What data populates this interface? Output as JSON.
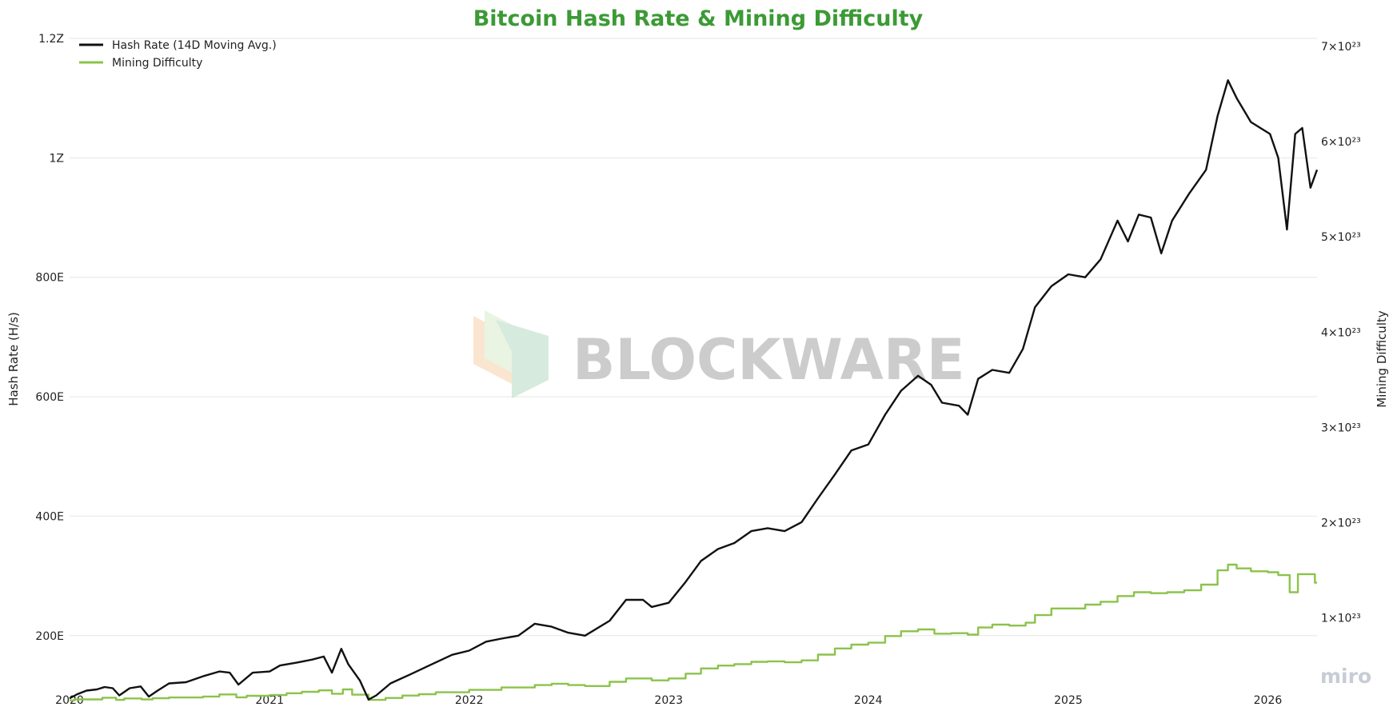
{
  "chart_data": {
    "type": "line",
    "title": "Bitcoin Hash Rate & Mining Difficulty",
    "title_color": "#3c9a35",
    "ylabel_left": "Hash Rate (H/s)",
    "ylabel_right": "Mining Difficulty",
    "grid": "horizontal",
    "legend_position": "top-left",
    "x_range": [
      "2020-01-01",
      "2026-04-01"
    ],
    "x_ticks": [
      "2020",
      "2021",
      "2022",
      "2023",
      "2024",
      "2025",
      "2026"
    ],
    "y_left": {
      "unit": "H/s",
      "range": [
        1.1e+20,
        1.2e+21
      ],
      "ticks": [
        {
          "value": 2e+20,
          "label": "200E"
        },
        {
          "value": 4e+20,
          "label": "400E"
        },
        {
          "value": 6e+20,
          "label": "600E"
        },
        {
          "value": 8e+20,
          "label": "800E"
        },
        {
          "value": 1e+21,
          "label": "1Z"
        },
        {
          "value": 1.2e+21,
          "label": "1.2Z"
        }
      ]
    },
    "y_right": {
      "range": [
        2.5e+22,
        7e+23
      ],
      "ticks": [
        {
          "value": 1e+23,
          "label": "1×10²³"
        },
        {
          "value": 2e+23,
          "label": "2×10²³"
        },
        {
          "value": 3e+23,
          "label": "3×10²³"
        },
        {
          "value": 4e+23,
          "label": "4×10²³"
        },
        {
          "value": 5e+23,
          "label": "5×10²³"
        },
        {
          "value": 6e+23,
          "label": "6×10²³"
        },
        {
          "value": 7e+23,
          "label": "7×10²³"
        }
      ]
    },
    "series": [
      {
        "name": "Hash Rate (14D Moving Avg.)",
        "color": "#111111",
        "axis": "left",
        "points": [
          [
            "2020-01-01",
            9.5e+19
          ],
          [
            "2020-01-15",
            1.02e+20
          ],
          [
            "2020-02-01",
            1.08e+20
          ],
          [
            "2020-02-20",
            1.1e+20
          ],
          [
            "2020-03-05",
            1.14e+20
          ],
          [
            "2020-03-20",
            1.12e+20
          ],
          [
            "2020-04-01",
            1e+20
          ],
          [
            "2020-04-20",
            1.12e+20
          ],
          [
            "2020-05-10",
            1.15e+20
          ],
          [
            "2020-05-25",
            9.8e+19
          ],
          [
            "2020-06-10",
            1.08e+20
          ],
          [
            "2020-07-01",
            1.2e+20
          ],
          [
            "2020-08-01",
            1.22e+20
          ],
          [
            "2020-09-01",
            1.32e+20
          ],
          [
            "2020-10-01",
            1.4e+20
          ],
          [
            "2020-10-20",
            1.38e+20
          ],
          [
            "2020-11-05",
            1.18e+20
          ],
          [
            "2020-12-01",
            1.38e+20
          ],
          [
            "2021-01-01",
            1.4e+20
          ],
          [
            "2021-01-20",
            1.5e+20
          ],
          [
            "2021-02-20",
            1.55e+20
          ],
          [
            "2021-03-20",
            1.6e+20
          ],
          [
            "2021-04-10",
            1.65e+20
          ],
          [
            "2021-04-25",
            1.38e+20
          ],
          [
            "2021-05-12",
            1.78e+20
          ],
          [
            "2021-05-25",
            1.52e+20
          ],
          [
            "2021-06-15",
            1.25e+20
          ],
          [
            "2021-07-01",
            9.3e+19
          ],
          [
            "2021-07-15",
            1e+20
          ],
          [
            "2021-08-10",
            1.2e+20
          ],
          [
            "2021-09-15",
            1.35e+20
          ],
          [
            "2021-10-20",
            1.5e+20
          ],
          [
            "2021-12-01",
            1.68e+20
          ],
          [
            "2022-01-01",
            1.75e+20
          ],
          [
            "2022-02-01",
            1.9e+20
          ],
          [
            "2022-03-01",
            1.95e+20
          ],
          [
            "2022-04-01",
            2e+20
          ],
          [
            "2022-05-01",
            2.2e+20
          ],
          [
            "2022-06-01",
            2.15e+20
          ],
          [
            "2022-07-01",
            2.05e+20
          ],
          [
            "2022-08-01",
            2e+20
          ],
          [
            "2022-09-15",
            2.25e+20
          ],
          [
            "2022-10-15",
            2.6e+20
          ],
          [
            "2022-11-15",
            2.6e+20
          ],
          [
            "2022-12-01",
            2.48e+20
          ],
          [
            "2023-01-01",
            2.55e+20
          ],
          [
            "2023-02-01",
            2.9e+20
          ],
          [
            "2023-03-01",
            3.25e+20
          ],
          [
            "2023-04-01",
            3.45e+20
          ],
          [
            "2023-05-01",
            3.55e+20
          ],
          [
            "2023-06-01",
            3.75e+20
          ],
          [
            "2023-07-01",
            3.8e+20
          ],
          [
            "2023-08-01",
            3.75e+20
          ],
          [
            "2023-09-01",
            3.9e+20
          ],
          [
            "2023-10-01",
            4.3e+20
          ],
          [
            "2023-11-01",
            4.7e+20
          ],
          [
            "2023-12-01",
            5.1e+20
          ],
          [
            "2024-01-01",
            5.2e+20
          ],
          [
            "2024-02-01",
            5.7e+20
          ],
          [
            "2024-03-01",
            6.1e+20
          ],
          [
            "2024-04-01",
            6.35e+20
          ],
          [
            "2024-04-25",
            6.2e+20
          ],
          [
            "2024-05-15",
            5.9e+20
          ],
          [
            "2024-06-15",
            5.85e+20
          ],
          [
            "2024-07-01",
            5.7e+20
          ],
          [
            "2024-07-20",
            6.3e+20
          ],
          [
            "2024-08-15",
            6.45e+20
          ],
          [
            "2024-09-15",
            6.4e+20
          ],
          [
            "2024-10-10",
            6.8e+20
          ],
          [
            "2024-11-01",
            7.5e+20
          ],
          [
            "2024-12-01",
            7.85e+20
          ],
          [
            "2025-01-01",
            8.05e+20
          ],
          [
            "2025-02-01",
            8e+20
          ],
          [
            "2025-03-01",
            8.3e+20
          ],
          [
            "2025-04-01",
            8.95e+20
          ],
          [
            "2025-04-20",
            8.6e+20
          ],
          [
            "2025-05-10",
            9.05e+20
          ],
          [
            "2025-06-01",
            9e+20
          ],
          [
            "2025-06-20",
            8.4e+20
          ],
          [
            "2025-07-10",
            8.95e+20
          ],
          [
            "2025-08-10",
            9.4e+20
          ],
          [
            "2025-09-10",
            9.8e+20
          ],
          [
            "2025-10-01",
            1.07e+21
          ],
          [
            "2025-10-20",
            1.13e+21
          ],
          [
            "2025-11-05",
            1.1e+21
          ],
          [
            "2025-12-01",
            1.06e+21
          ],
          [
            "2026-01-05",
            1.04e+21
          ],
          [
            "2026-01-20",
            1e+21
          ],
          [
            "2026-02-05",
            8.8e+20
          ],
          [
            "2026-02-20",
            1.04e+21
          ],
          [
            "2026-03-05",
            1.05e+21
          ],
          [
            "2026-03-20",
            9.5e+20
          ],
          [
            "2026-04-01",
            9.8e+20
          ]
        ]
      },
      {
        "name": "Mining Difficulty",
        "color": "#8bc34a",
        "axis": "right",
        "points": [
          [
            "2020-01-01",
            1.35e+22
          ],
          [
            "2020-01-10",
            1.45e+22
          ],
          [
            "2020-03-01",
            1.63e+22
          ],
          [
            "2020-03-26",
            1.4e+22
          ],
          [
            "2020-04-10",
            1.55e+22
          ],
          [
            "2020-05-12",
            1.45e+22
          ],
          [
            "2020-06-01",
            1.58e+22
          ],
          [
            "2020-07-01",
            1.65e+22
          ],
          [
            "2020-09-01",
            1.75e+22
          ],
          [
            "2020-10-01",
            1.97e+22
          ],
          [
            "2020-11-01",
            1.67e+22
          ],
          [
            "2020-11-20",
            1.83e+22
          ],
          [
            "2021-01-01",
            1.9e+22
          ],
          [
            "2021-02-01",
            2.1e+22
          ],
          [
            "2021-03-01",
            2.25e+22
          ],
          [
            "2021-04-01",
            2.4e+22
          ],
          [
            "2021-04-25",
            2.05e+22
          ],
          [
            "2021-05-15",
            2.5e+22
          ],
          [
            "2021-06-01",
            1.95e+22
          ],
          [
            "2021-07-01",
            1.4e+22
          ],
          [
            "2021-08-01",
            1.6e+22
          ],
          [
            "2021-09-01",
            1.85e+22
          ],
          [
            "2021-10-01",
            2e+22
          ],
          [
            "2021-11-01",
            2.2e+22
          ],
          [
            "2022-01-01",
            2.45e+22
          ],
          [
            "2022-03-01",
            2.7e+22
          ],
          [
            "2022-05-01",
            2.95e+22
          ],
          [
            "2022-06-01",
            3.1e+22
          ],
          [
            "2022-07-01",
            2.95e+22
          ],
          [
            "2022-08-01",
            2.85e+22
          ],
          [
            "2022-09-15",
            3.3e+22
          ],
          [
            "2022-10-15",
            3.65e+22
          ],
          [
            "2022-12-01",
            3.45e+22
          ],
          [
            "2023-01-01",
            3.65e+22
          ],
          [
            "2023-02-01",
            4.15e+22
          ],
          [
            "2023-03-01",
            4.7e+22
          ],
          [
            "2023-04-01",
            5e+22
          ],
          [
            "2023-05-01",
            5.15e+22
          ],
          [
            "2023-06-01",
            5.4e+22
          ],
          [
            "2023-07-01",
            5.45e+22
          ],
          [
            "2023-08-01",
            5.35e+22
          ],
          [
            "2023-09-01",
            5.55e+22
          ],
          [
            "2023-10-01",
            6.15e+22
          ],
          [
            "2023-11-01",
            6.8e+22
          ],
          [
            "2023-12-01",
            7.2e+22
          ],
          [
            "2024-01-01",
            7.4e+22
          ],
          [
            "2024-02-01",
            8.1e+22
          ],
          [
            "2024-03-01",
            8.6e+22
          ],
          [
            "2024-04-01",
            8.8e+22
          ],
          [
            "2024-05-01",
            8.35e+22
          ],
          [
            "2024-06-01",
            8.4e+22
          ],
          [
            "2024-07-01",
            8.25e+22
          ],
          [
            "2024-07-20",
            9e+22
          ],
          [
            "2024-08-15",
            9.3e+22
          ],
          [
            "2024-09-15",
            9.2e+22
          ],
          [
            "2024-10-15",
            9.5e+22
          ],
          [
            "2024-11-01",
            1.03e+23
          ],
          [
            "2024-12-01",
            1.1e+23
          ],
          [
            "2025-01-01",
            1.1e+23
          ],
          [
            "2025-02-01",
            1.14e+23
          ],
          [
            "2025-03-01",
            1.17e+23
          ],
          [
            "2025-04-01",
            1.23e+23
          ],
          [
            "2025-05-01",
            1.27e+23
          ],
          [
            "2025-06-01",
            1.26e+23
          ],
          [
            "2025-07-01",
            1.27e+23
          ],
          [
            "2025-08-01",
            1.29e+23
          ],
          [
            "2025-09-01",
            1.35e+23
          ],
          [
            "2025-10-01",
            1.5e+23
          ],
          [
            "2025-10-20",
            1.56e+23
          ],
          [
            "2025-11-05",
            1.52e+23
          ],
          [
            "2025-12-01",
            1.49e+23
          ],
          [
            "2026-01-01",
            1.48e+23
          ],
          [
            "2026-01-20",
            1.45e+23
          ],
          [
            "2026-02-10",
            1.27e+23
          ],
          [
            "2026-02-25",
            1.46e+23
          ],
          [
            "2026-03-20",
            1.46e+23
          ],
          [
            "2026-03-28",
            1.37e+23
          ],
          [
            "2026-04-01",
            1.37e+23
          ]
        ]
      }
    ],
    "watermark": "BLOCKWARE",
    "watermark_colors": [
      "#f5c69a",
      "#a6d3b6",
      "#cfe7c3"
    ],
    "credit": "miro"
  }
}
